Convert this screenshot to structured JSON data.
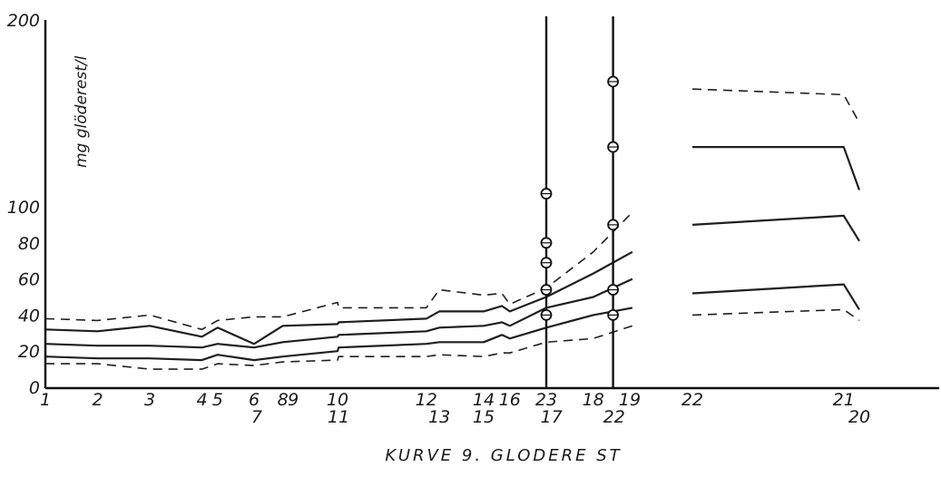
{
  "chart_data": {
    "type": "line",
    "title": "KURVE 9. GLODERE ST",
    "ylabel": "mg glöderest/l",
    "ylim": [
      0,
      200
    ],
    "yticks": [
      "0",
      "20",
      "40",
      "60",
      "80",
      "100",
      "200"
    ],
    "x_positions": [
      1,
      2,
      3,
      4,
      5,
      6,
      7,
      8,
      9,
      10,
      11,
      12,
      13,
      14,
      15,
      16,
      17,
      18,
      19
    ],
    "x_labels": [
      {
        "pos": 1,
        "text": "1",
        "row": 0
      },
      {
        "pos": 2,
        "text": "2",
        "row": 0
      },
      {
        "pos": 3,
        "text": "3",
        "row": 0
      },
      {
        "pos": 4,
        "text": "4",
        "row": 0
      },
      {
        "pos": 4.3,
        "text": "5",
        "row": 0
      },
      {
        "pos": 5,
        "text": "6",
        "row": 0
      },
      {
        "pos": 5.05,
        "text": "7",
        "row": 1
      },
      {
        "pos": 5.55,
        "text": "8",
        "row": 0
      },
      {
        "pos": 5.75,
        "text": "9",
        "row": 0
      },
      {
        "pos": 6.6,
        "text": "10",
        "row": 0
      },
      {
        "pos": 6.62,
        "text": "11",
        "row": 1
      },
      {
        "pos": 8.3,
        "text": "12",
        "row": 0
      },
      {
        "pos": 8.55,
        "text": "13",
        "row": 1
      },
      {
        "pos": 9.4,
        "text": "14",
        "row": 0
      },
      {
        "pos": 9.4,
        "text": "15",
        "row": 1
      },
      {
        "pos": 9.9,
        "text": "16",
        "row": 0
      },
      {
        "pos": 10.6,
        "text": "23",
        "row": 0
      },
      {
        "pos": 10.7,
        "text": "17",
        "row": 1
      },
      {
        "pos": 11.5,
        "text": "18",
        "row": 0
      },
      {
        "pos": 11.9,
        "text": "22",
        "row": 1
      },
      {
        "pos": 12.2,
        "text": "19",
        "row": 0
      },
      {
        "pos": 13.4,
        "text": "22",
        "row": 0
      },
      {
        "pos": 16.3,
        "text": "21",
        "row": 0
      },
      {
        "pos": 16.6,
        "text": "20",
        "row": 1
      }
    ],
    "series": [
      {
        "style": "dashed",
        "x": [
          1,
          2,
          3,
          4,
          4.3,
          5,
          5.55,
          6.6,
          6.62,
          8.3,
          8.55,
          9.4,
          9.75,
          9.9,
          10.6,
          11.5,
          12.25
        ],
        "y": [
          38,
          37,
          40,
          32,
          37,
          39,
          39,
          47,
          44,
          44,
          54,
          51,
          52,
          46,
          55,
          75,
          97
        ]
      },
      {
        "style": "solid",
        "x": [
          1,
          2,
          3,
          4,
          4.3,
          5,
          5.55,
          6.6,
          6.62,
          8.3,
          8.55,
          9.4,
          9.75,
          9.9,
          10.6,
          11.5,
          12.25
        ],
        "y": [
          32,
          31,
          34,
          28,
          33,
          24,
          34,
          35,
          36,
          38,
          42,
          42,
          45,
          42,
          50,
          63,
          75
        ]
      },
      {
        "style": "solid",
        "x": [
          1,
          2,
          3,
          4,
          4.3,
          5,
          5.55,
          6.6,
          6.62,
          8.3,
          8.55,
          9.4,
          9.75,
          9.9,
          10.6,
          11.5,
          12.25
        ],
        "y": [
          24,
          23,
          23,
          22,
          24,
          22,
          25,
          28,
          29,
          31,
          33,
          34,
          36,
          34,
          44,
          50,
          60
        ]
      },
      {
        "style": "solid",
        "x": [
          1,
          2,
          3,
          4,
          4.3,
          5,
          5.55,
          6.6,
          6.62,
          8.3,
          8.55,
          9.4,
          9.75,
          9.9,
          10.6,
          11.5,
          12.25
        ],
        "y": [
          17,
          16,
          16,
          15,
          18,
          15,
          17,
          20,
          22,
          24,
          25,
          25,
          29,
          27,
          33,
          40,
          44
        ]
      },
      {
        "style": "dashed",
        "x": [
          1,
          2,
          3,
          4,
          4.3,
          5,
          5.55,
          6.6,
          6.62,
          8.3,
          8.55,
          9.4,
          9.75,
          9.9,
          10.6,
          11.5,
          12.25
        ],
        "y": [
          13,
          13,
          10,
          10,
          13,
          12,
          14,
          15,
          17,
          17,
          18,
          17,
          19,
          19,
          25,
          27,
          34
        ]
      },
      {
        "style": "dashed",
        "x": [
          13.4,
          16.3,
          16.6
        ],
        "y": [
          163,
          160,
          145
        ]
      },
      {
        "style": "solid",
        "x": [
          13.4,
          16.3,
          16.6
        ],
        "y": [
          132,
          132,
          109
        ]
      },
      {
        "style": "solid",
        "x": [
          13.4,
          16.3,
          16.6
        ],
        "y": [
          90,
          95,
          81
        ]
      },
      {
        "style": "solid",
        "x": [
          13.4,
          16.3,
          16.6
        ],
        "y": [
          52,
          57,
          43
        ]
      },
      {
        "style": "dashed",
        "x": [
          13.4,
          16.3,
          16.6
        ],
        "y": [
          40,
          43,
          37
        ]
      }
    ],
    "verticals": [
      {
        "x": 10.6,
        "points": [
          40,
          54,
          69,
          80,
          107
        ]
      },
      {
        "x": 11.88,
        "points": [
          40,
          54,
          90,
          132,
          167
        ]
      }
    ],
    "grid": false,
    "legend": "none"
  }
}
